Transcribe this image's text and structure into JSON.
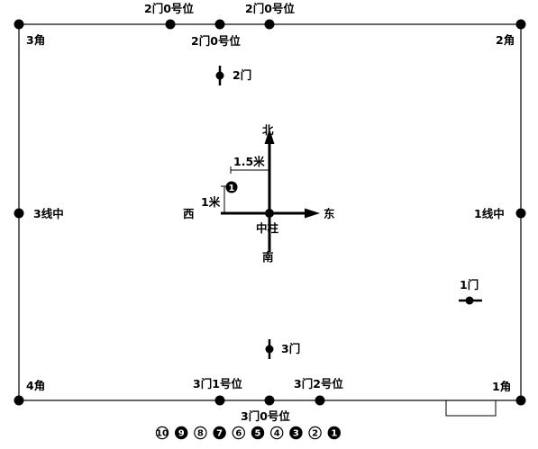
{
  "points": {
    "gate2_0a": "2门0号位",
    "gate2_0b": "2门0号位",
    "gate2_0c": "2门0号位",
    "gate2": "2门",
    "gate1": "1门",
    "gate3": "3门",
    "gate3_1": "3门1号位",
    "gate3_2": "3门2号位",
    "gate3_0": "3门0号位",
    "corner1": "1角",
    "corner2": "2角",
    "corner3": "3角",
    "corner4": "4角",
    "line1_mid": "1线中",
    "line3_mid": "3线中",
    "center_pillar": "中柱"
  },
  "directions": {
    "north": "北",
    "south": "南",
    "east": "东",
    "west": "西"
  },
  "measures": {
    "horizontal": "1.5米",
    "vertical": "1米"
  },
  "marker_label": "1",
  "numbered_markers": [
    {
      "label": "10",
      "filled": false
    },
    {
      "label": "9",
      "filled": true
    },
    {
      "label": "8",
      "filled": false
    },
    {
      "label": "7",
      "filled": true
    },
    {
      "label": "6",
      "filled": false
    },
    {
      "label": "5",
      "filled": true
    },
    {
      "label": "4",
      "filled": false
    },
    {
      "label": "3",
      "filled": true
    },
    {
      "label": "2",
      "filled": false
    },
    {
      "label": "1",
      "filled": true
    }
  ]
}
